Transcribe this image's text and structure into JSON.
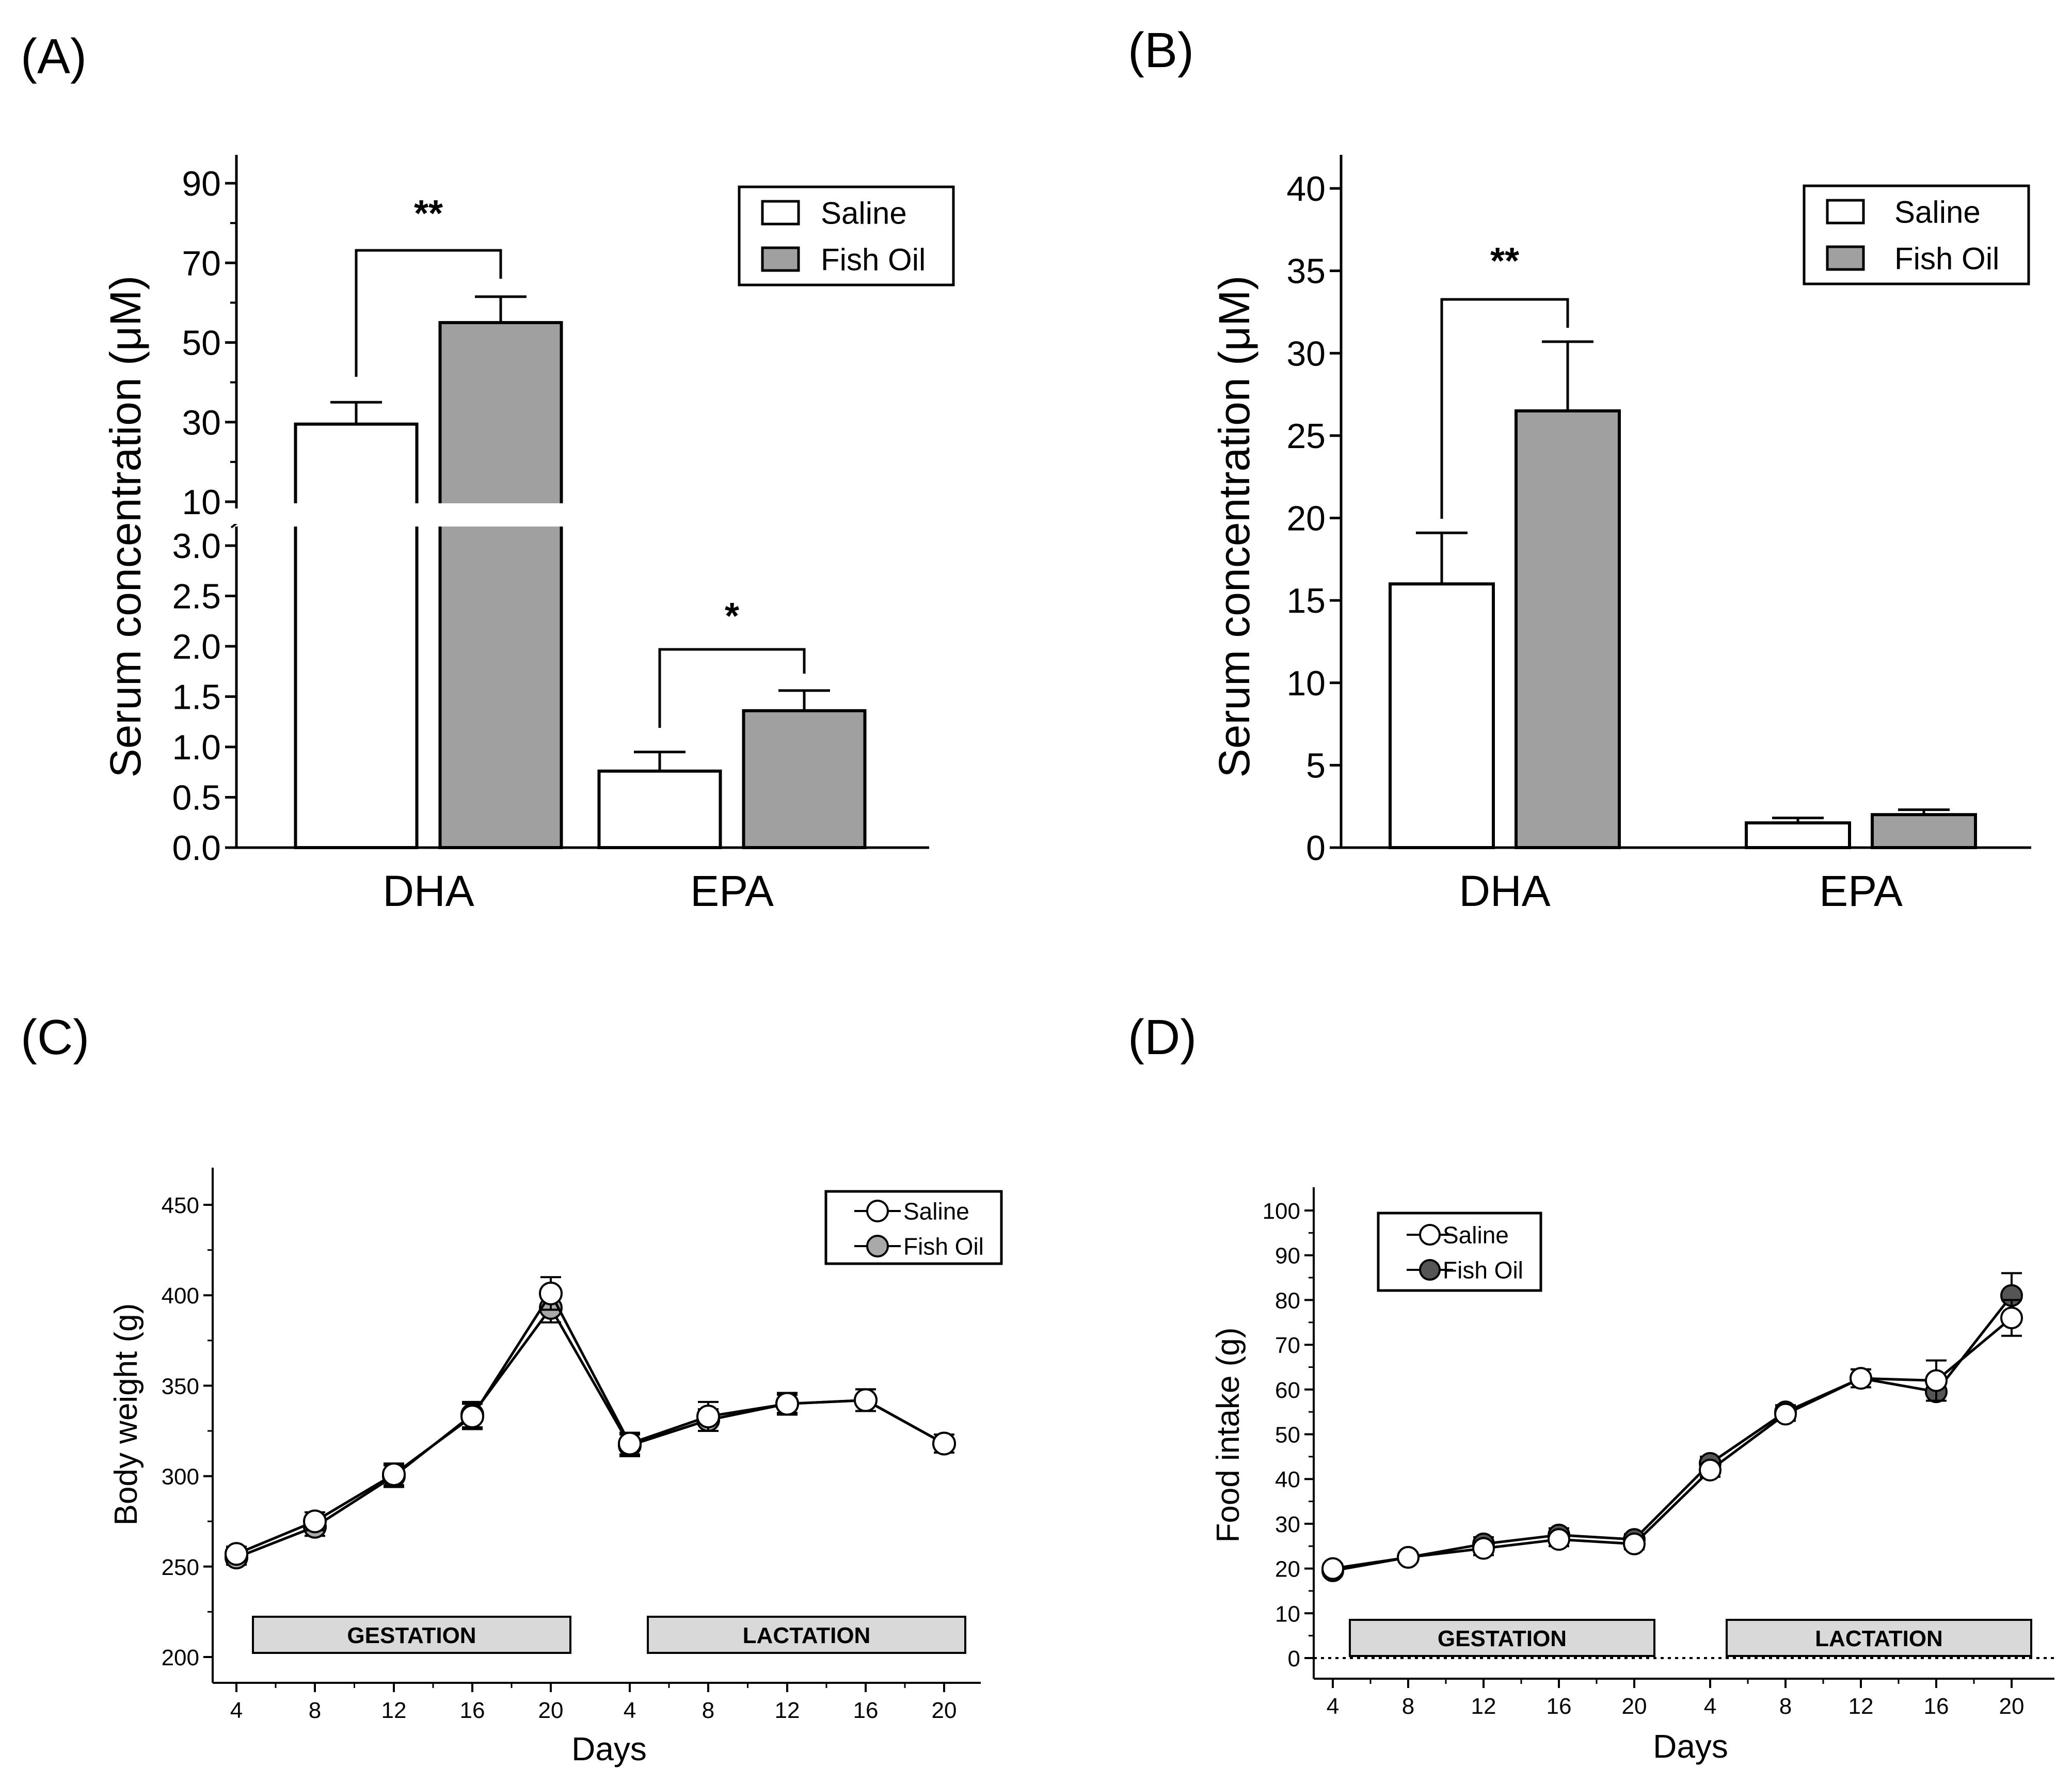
{
  "chart_data": [
    {
      "panel": "(A)",
      "type": "bar",
      "categories": [
        "DHA",
        "EPA"
      ],
      "ylabel": "Serum concentration (μM)",
      "y_broken_axis": true,
      "y_lower_ticks": [
        "0.0",
        "0.5",
        "1.0",
        "1.5",
        "2.0",
        "2.5",
        "3.0"
      ],
      "y_upper_ticks": [
        "10",
        "30",
        "50",
        "70",
        "90"
      ],
      "series": [
        {
          "name": "Saline",
          "color": "#ffffff",
          "values": [
            29.5,
            0.76
          ],
          "errors": [
            5.5,
            0.19
          ]
        },
        {
          "name": "Fish Oil",
          "color": "#a0a0a0",
          "values": [
            55,
            1.36
          ],
          "errors": [
            6.5,
            0.2
          ]
        }
      ],
      "significance": [
        "**",
        "*"
      ],
      "legend": [
        "Saline",
        "Fish Oil"
      ]
    },
    {
      "panel": "(B)",
      "type": "bar",
      "categories": [
        "DHA",
        "EPA"
      ],
      "ylabel": "Serum concentration (μM)",
      "ylim": [
        0,
        40
      ],
      "y_ticks": [
        "0",
        "5",
        "10",
        "15",
        "20",
        "25",
        "30",
        "35",
        "40"
      ],
      "series": [
        {
          "name": "Saline",
          "color": "#ffffff",
          "values": [
            16,
            1.5
          ],
          "errors": [
            3.1,
            0.3
          ]
        },
        {
          "name": "Fish Oil",
          "color": "#a0a0a0",
          "values": [
            26.5,
            2.0
          ],
          "errors": [
            4.2,
            0.3
          ]
        }
      ],
      "significance": [
        "**",
        ""
      ],
      "legend": [
        "Saline",
        "Fish Oil"
      ]
    },
    {
      "panel": "(C)",
      "type": "line",
      "ylabel": "Body weight (g)",
      "xlabel": "Days",
      "x_ticks": [
        "4",
        "8",
        "12",
        "16",
        "20",
        "4",
        "8",
        "12",
        "16",
        "20"
      ],
      "y_ticks": [
        "200",
        "250",
        "300",
        "350",
        "400",
        "450"
      ],
      "ylim": [
        200,
        470
      ],
      "phases": [
        "GESTATION",
        "LACTATION"
      ],
      "series": [
        {
          "name": "Saline",
          "color": "#ffffff",
          "values": [
            257,
            275,
            301,
            333,
            401,
            318,
            333,
            340,
            342,
            318
          ],
          "errors": [
            4,
            5,
            6,
            7,
            9,
            6,
            8,
            6,
            6,
            5
          ]
        },
        {
          "name": "Fish Oil",
          "color": "#a9a9a9",
          "values": [
            255,
            272,
            300,
            334,
            393,
            317,
            331,
            340,
            342,
            318
          ],
          "errors": [
            4,
            5,
            6,
            7,
            8,
            6,
            6,
            5,
            6,
            5
          ]
        }
      ],
      "legend": [
        "Saline",
        "Fish Oil"
      ]
    },
    {
      "panel": "(D)",
      "type": "line",
      "ylabel": "Food intake (g)",
      "xlabel": "Days",
      "x_ticks": [
        "4",
        "8",
        "12",
        "16",
        "20",
        "4",
        "8",
        "12",
        "16",
        "20"
      ],
      "y_ticks": [
        "0",
        "10",
        "20",
        "30",
        "40",
        "50",
        "60",
        "70",
        "80",
        "90",
        "100"
      ],
      "ylim": [
        0,
        105
      ],
      "phases": [
        "GESTATION",
        "LACTATION"
      ],
      "series": [
        {
          "name": "Saline",
          "color": "#ffffff",
          "values": [
            20,
            22.5,
            24.5,
            26.5,
            25.5,
            42,
            54.5,
            62.5,
            62,
            76
          ],
          "errors": [
            1,
            1,
            1.5,
            1.5,
            1.2,
            1.5,
            1.5,
            2,
            4.5,
            4
          ]
        },
        {
          "name": "Fish Oil",
          "color": "#555555",
          "values": [
            19.5,
            22.5,
            25.5,
            27.5,
            26.5,
            43.5,
            55,
            62.5,
            59.5,
            81
          ],
          "errors": [
            1,
            1,
            1.5,
            1.5,
            1.2,
            1.5,
            1.5,
            2,
            2,
            5
          ]
        }
      ],
      "legend": [
        "Saline",
        "Fish Oil"
      ]
    }
  ]
}
